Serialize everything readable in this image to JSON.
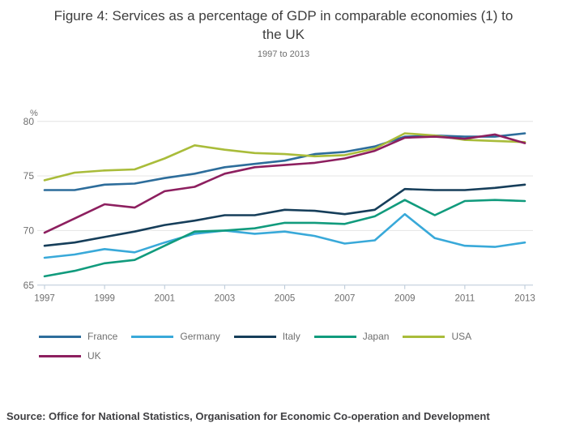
{
  "figure": {
    "title_line1": "Figure 4: Services as a percentage of GDP in comparable economies (1) to",
    "title_line2": "the UK",
    "subtitle": "1997 to 2013",
    "unit_label": "%",
    "source": "Source: Office for National Statistics, Organisation for Economic Co-operation and Development"
  },
  "colors": {
    "grid": "#e4e4e4",
    "axis": "#b9c8d7",
    "tick_label": "#6f6f6f",
    "title_text": "#3d3d3d",
    "subtitle_text": "#6e6e6e",
    "source_text": "#3f3f42"
  },
  "chart_data": {
    "type": "line",
    "title": "Figure 4: Services as a percentage of GDP in comparable economies (1) to the UK",
    "subtitle": "1997 to 2013",
    "xlabel": "",
    "ylabel": "%",
    "ylim": [
      65,
      80
    ],
    "grid": true,
    "legend_position": "bottom",
    "x": [
      1997,
      1998,
      1999,
      2000,
      2001,
      2002,
      2003,
      2004,
      2005,
      2006,
      2007,
      2008,
      2009,
      2010,
      2011,
      2012,
      2013
    ],
    "xticks": [
      "1997",
      "1999",
      "2001",
      "2003",
      "2005",
      "2007",
      "2009",
      "2011",
      "2013"
    ],
    "yticks": [
      65,
      70,
      75,
      80
    ],
    "series": [
      {
        "name": "France",
        "color": "#2d6d9b",
        "values": [
          73.7,
          73.7,
          74.2,
          74.3,
          74.8,
          75.2,
          75.8,
          76.1,
          76.4,
          77.0,
          77.2,
          77.7,
          78.6,
          78.7,
          78.6,
          78.6,
          78.9
        ]
      },
      {
        "name": "Germany",
        "color": "#39a9d9",
        "values": [
          67.5,
          67.8,
          68.3,
          68.0,
          68.9,
          69.7,
          70.0,
          69.7,
          69.9,
          69.5,
          68.8,
          69.1,
          71.5,
          69.3,
          68.6,
          68.5,
          68.9
        ]
      },
      {
        "name": "Italy",
        "color": "#163e5a",
        "values": [
          68.6,
          68.9,
          69.4,
          69.9,
          70.5,
          70.9,
          71.4,
          71.4,
          71.9,
          71.8,
          71.5,
          71.9,
          73.8,
          73.7,
          73.7,
          73.9,
          74.2
        ]
      },
      {
        "name": "Japan",
        "color": "#119b7d",
        "values": [
          65.8,
          66.3,
          67.0,
          67.3,
          68.6,
          69.9,
          70.0,
          70.2,
          70.7,
          70.7,
          70.6,
          71.3,
          72.8,
          71.4,
          72.7,
          72.8,
          72.7
        ]
      },
      {
        "name": "USA",
        "color": "#a9bc3a",
        "values": [
          74.6,
          75.3,
          75.5,
          75.6,
          76.6,
          77.8,
          77.4,
          77.1,
          77.0,
          76.8,
          76.9,
          77.5,
          78.9,
          78.7,
          78.3,
          78.2,
          78.1
        ]
      },
      {
        "name": "UK",
        "color": "#8d1f5f",
        "values": [
          69.8,
          71.1,
          72.4,
          72.1,
          73.6,
          74.0,
          75.2,
          75.8,
          76.0,
          76.2,
          76.6,
          77.3,
          78.5,
          78.6,
          78.4,
          78.8,
          78.0
        ]
      }
    ],
    "legend_rows": [
      [
        "France",
        "Germany",
        "Italy",
        "Japan",
        "USA"
      ],
      [
        "UK"
      ]
    ]
  }
}
